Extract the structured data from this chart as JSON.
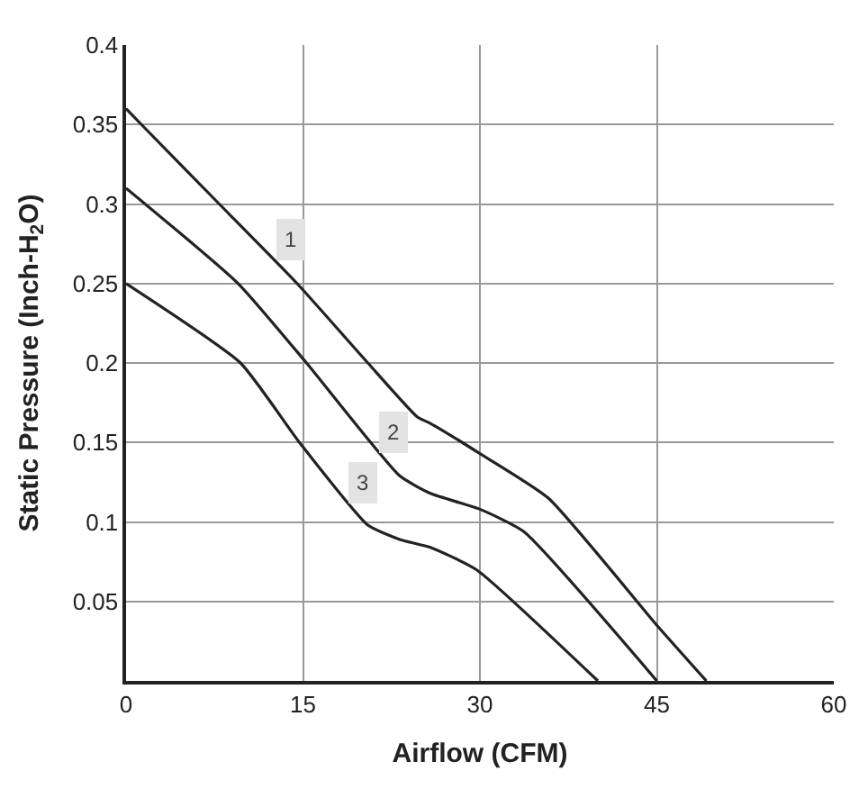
{
  "chart_data": {
    "type": "line",
    "xlabel": "Airflow (CFM)",
    "ylabel": "Static Pressure (Inch-H$_{2}$O)",
    "xlim": [
      0,
      60
    ],
    "xticks": [
      0,
      15,
      30,
      45,
      60
    ],
    "ylim": [
      0,
      0.4
    ],
    "yticks": [
      0.05,
      0.1,
      0.15,
      0.2,
      0.25,
      0.3,
      0.35,
      0.4
    ],
    "grid": true,
    "marker": "none",
    "line_style": "solid",
    "series": [
      {
        "name": "1",
        "color": "#222222",
        "x": [
          0,
          1.3,
          7.9,
          14.5,
          20.5,
          24.7,
          25.8,
          30,
          35.8,
          45,
          49.2
        ],
        "values": [
          0.36,
          0.35,
          0.3,
          0.25,
          0.2,
          0.166,
          0.162,
          0.143,
          0.115,
          0.035,
          0
        ]
      },
      {
        "name": "2",
        "color": "#222222",
        "x": [
          0,
          9.5,
          15.3,
          23.2,
          25.8,
          30,
          33.7,
          45
        ],
        "values": [
          0.31,
          0.25,
          0.2,
          0.129,
          0.118,
          0.108,
          0.094,
          0
        ]
      },
      {
        "name": "3",
        "color": "#222222",
        "x": [
          0,
          9.7,
          14.7,
          20.5,
          23.2,
          25.8,
          29.7,
          40
        ],
        "values": [
          0.25,
          0.2,
          0.15,
          0.098,
          0.089,
          0.084,
          0.07,
          0
        ]
      }
    ]
  }
}
